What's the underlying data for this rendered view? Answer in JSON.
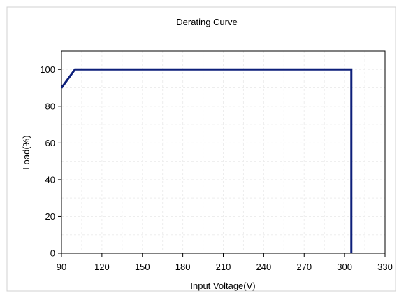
{
  "chart_data": {
    "type": "line",
    "title": "Derating Curve",
    "xlabel": "Input Voltage(V)",
    "ylabel": "Load(%)",
    "xlim": [
      90,
      330
    ],
    "ylim": [
      0,
      110
    ],
    "x_ticks": [
      90,
      120,
      150,
      180,
      210,
      240,
      270,
      300,
      330
    ],
    "y_ticks": [
      0,
      20,
      40,
      60,
      80,
      100
    ],
    "grid": true,
    "legend": "none",
    "series": [
      {
        "color": "#0d1f7a",
        "points": [
          [
            90,
            90
          ],
          [
            100,
            100
          ],
          [
            305,
            100
          ],
          [
            305,
            0
          ]
        ]
      }
    ]
  }
}
